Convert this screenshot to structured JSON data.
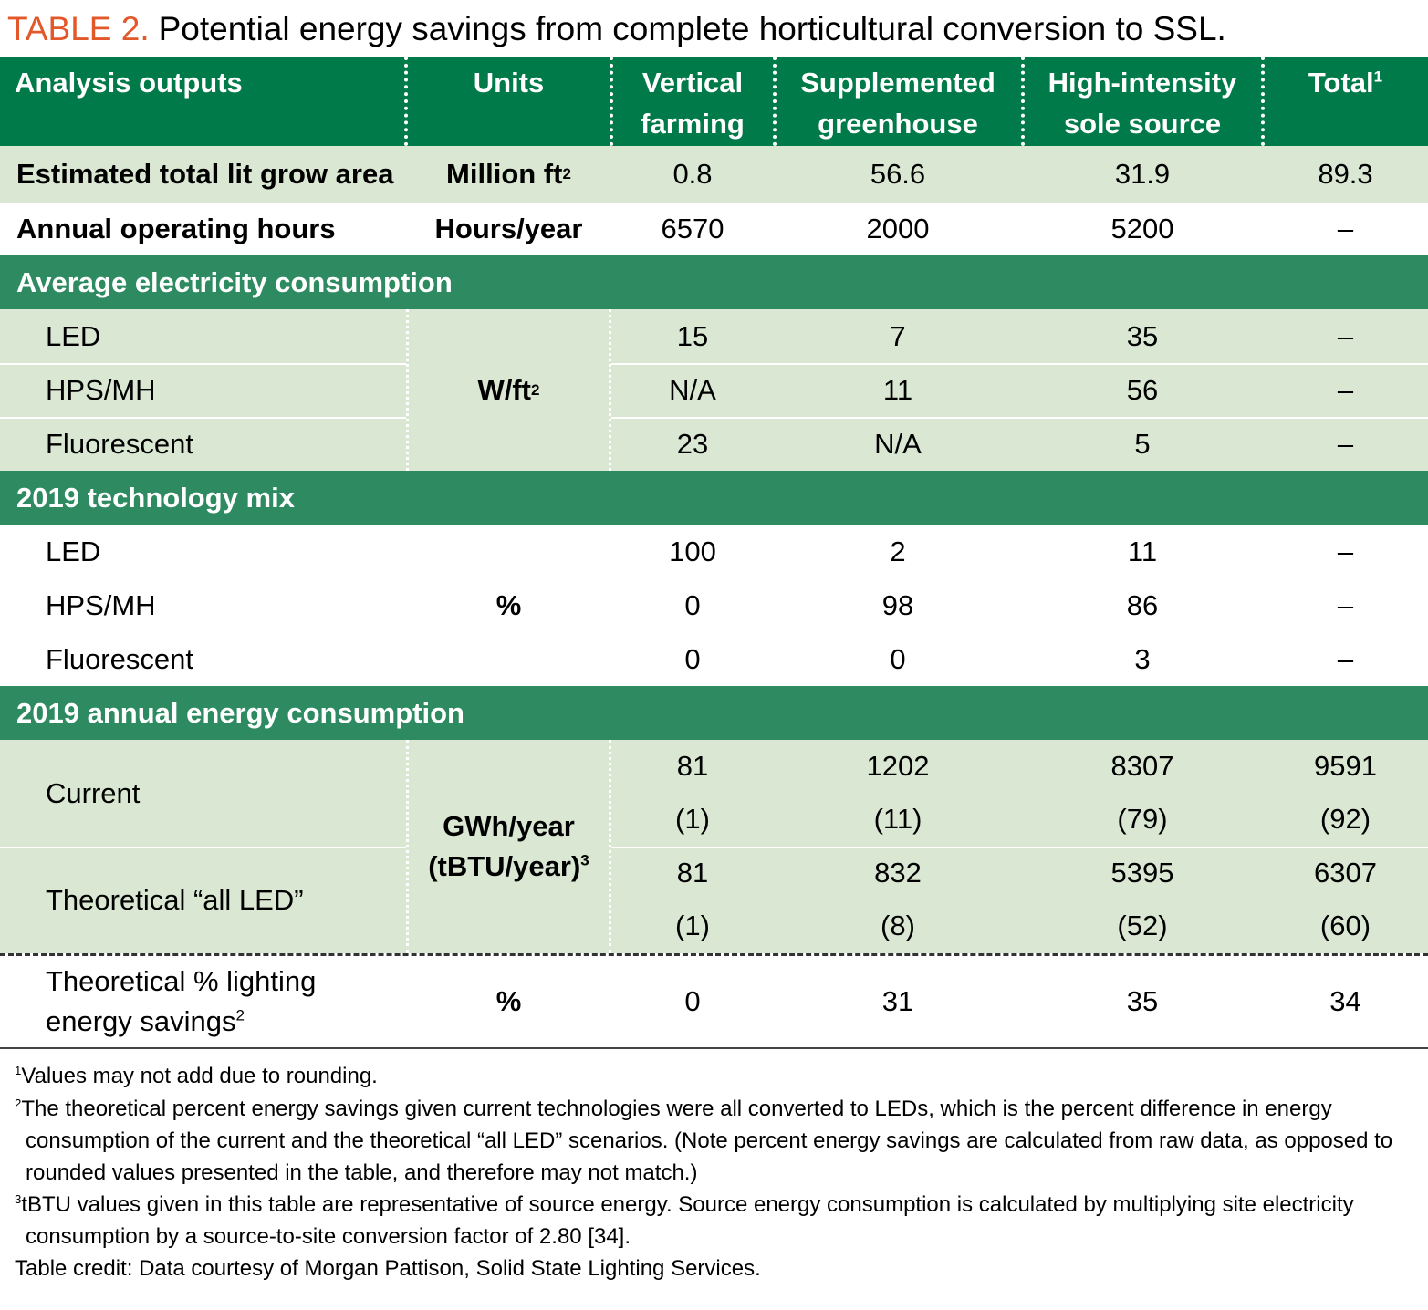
{
  "caption": {
    "label": "TABLE 2.",
    "text": "Potential energy savings from complete horticultural conversion to SSL."
  },
  "header": {
    "col0": "Analysis outputs",
    "col1": "Units",
    "col2a": "Vertical",
    "col2b": "farming",
    "col3a": "Supplemented",
    "col3b": "greenhouse",
    "col4a": "High-intensity",
    "col4b": "sole source",
    "col5": "Total",
    "col5_sup": "1"
  },
  "rows": {
    "area": {
      "label": "Estimated total lit grow area",
      "unit": "Million ft",
      "unit_sup": "2",
      "vf": "0.8",
      "sg": "56.6",
      "hi": "31.9",
      "total": "89.3"
    },
    "hours": {
      "label": "Annual operating hours",
      "unit": "Hours/year",
      "vf": "6570",
      "sg": "2000",
      "hi": "5200",
      "total": "–"
    }
  },
  "elec": {
    "title": "Average electricity consumption",
    "unit": "W/ft",
    "unit_sup": "2",
    "led": {
      "label": "LED",
      "vf": "15",
      "sg": "7",
      "hi": "35",
      "total": "–"
    },
    "hps": {
      "label": "HPS/MH",
      "vf": "N/A",
      "sg": "11",
      "hi": "56",
      "total": "–"
    },
    "fluo": {
      "label": "Fluorescent",
      "vf": "23",
      "sg": "N/A",
      "hi": "5",
      "total": "–"
    }
  },
  "mix": {
    "title": "2019 technology mix",
    "unit": "%",
    "led": {
      "label": "LED",
      "vf": "100",
      "sg": "2",
      "hi": "11",
      "total": "–"
    },
    "hps": {
      "label": "HPS/MH",
      "vf": "0",
      "sg": "98",
      "hi": "86",
      "total": "–"
    },
    "fluo": {
      "label": "Fluorescent",
      "vf": "0",
      "sg": "0",
      "hi": "3",
      "total": "–"
    }
  },
  "energy": {
    "title": "2019 annual energy consumption",
    "unit_a": "GWh/year",
    "unit_b": "(tBTU/year)",
    "unit_sup": "3",
    "current": {
      "label": "Current",
      "vf": "81",
      "sg": "1202",
      "hi": "8307",
      "total": "9591",
      "vf2": "(1)",
      "sg2": "(11)",
      "hi2": "(79)",
      "total2": "(92)"
    },
    "allled": {
      "label": "Theoretical “all LED”",
      "vf": "81",
      "sg": "832",
      "hi": "5395",
      "total": "6307",
      "vf2": "(1)",
      "sg2": "(8)",
      "hi2": "(52)",
      "total2": "(60)"
    }
  },
  "savings": {
    "label_a": "Theoretical % lighting",
    "label_b": "energy savings",
    "label_sup": "2",
    "unit": "%",
    "vf": "0",
    "sg": "31",
    "hi": "35",
    "total": "34"
  },
  "footnotes": {
    "n1_sup": "1",
    "n1": "Values may not add due to rounding.",
    "n2_sup": "2",
    "n2a": "The theoretical percent energy savings given current technologies were all converted to LEDs, which is the percent difference in energy",
    "n2b": "consumption of the current and the theoretical “all LED” scenarios. (Note percent energy savings are calculated from raw data, as opposed to",
    "n2c": "rounded values presented in the table, and therefore may not match.)",
    "n3_sup": "3",
    "n3a": "tBTU values given in this table are representative of source energy. Source energy consumption is calculated by multiplying site electricity",
    "n3b": "consumption by a source-to-site conversion factor of 2.80 [34].",
    "credit": "Table credit: Data courtesy of Morgan Pattison, Solid State Lighting Services."
  },
  "colors": {
    "header_green": "#007a48",
    "section_green": "#2e8b61",
    "light_green": "#d9e7d3",
    "caption_orange": "#e2582a"
  }
}
